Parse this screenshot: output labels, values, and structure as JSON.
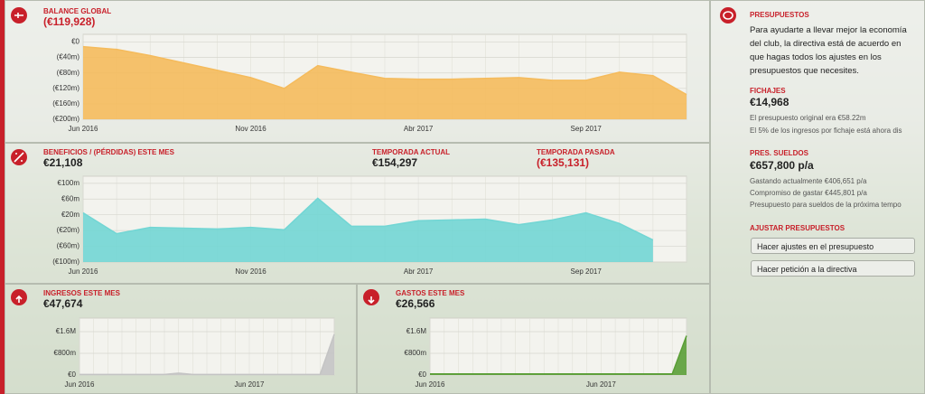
{
  "balance": {
    "label": "BALANCE GLOBAL",
    "value": "(€119,928)",
    "chart": {
      "type": "area",
      "categories": [
        "Jun 2016",
        null,
        null,
        null,
        null,
        "Nov 2016",
        null,
        null,
        null,
        null,
        "Abr 2017",
        null,
        null,
        null,
        null,
        "Sep 2017",
        null,
        null,
        null
      ],
      "values": [
        -12,
        -19,
        -35,
        -54,
        -73,
        -92,
        -120,
        -61,
        -78,
        -94,
        -96,
        -96,
        -94,
        -92,
        -99,
        -99,
        -78,
        -87,
        -136
      ],
      "color": "#f5bb5c",
      "ylim": [
        -200,
        20
      ],
      "yticks": [
        {
          "value": 0,
          "label": "€0"
        },
        {
          "value": -40,
          "label": "(€40m)"
        },
        {
          "value": -80,
          "label": "(€80m)"
        },
        {
          "value": -120,
          "label": "(€120m)"
        },
        {
          "value": -160,
          "label": "(€160m)"
        },
        {
          "value": -200,
          "label": "(€200m)"
        }
      ],
      "grid": true
    }
  },
  "profit": {
    "label": "BENEFICIOS / (PÉRDIDAS) ESTE MES",
    "value": "€21,108",
    "current_label": "TEMPORADA ACTUAL",
    "current_value": "€154,297",
    "last_label": "TEMPORADA PASADA",
    "last_value": "(€135,131)",
    "chart": {
      "type": "area",
      "categories": [
        "Jun 2016",
        null,
        null,
        null,
        null,
        "Nov 2016",
        null,
        null,
        null,
        null,
        "Abr 2017",
        null,
        null,
        null,
        null,
        "Sep 2017",
        null,
        null,
        null
      ],
      "values": [
        25,
        -28,
        -12,
        -14,
        -16,
        -12,
        -18,
        62,
        -9,
        -9,
        5,
        7,
        9,
        -5,
        7,
        25,
        -2,
        -44,
        null
      ],
      "color": "#72d6d4",
      "ylim": [
        -100,
        118
      ],
      "yticks": [
        {
          "value": 100,
          "label": "€100m"
        },
        {
          "value": 60,
          "label": "€60m"
        },
        {
          "value": 20,
          "label": "€20m"
        },
        {
          "value": -20,
          "label": "(€20m)"
        },
        {
          "value": -60,
          "label": "(€60m)"
        },
        {
          "value": -100,
          "label": "(€100m)"
        }
      ],
      "grid": true
    }
  },
  "income": {
    "label": "INGRESOS ESTE MES",
    "value": "€47,674",
    "chart": {
      "type": "area",
      "categories": [
        "Jun 2016",
        null,
        null,
        null,
        null,
        null,
        null,
        null,
        null,
        null,
        null,
        null,
        "Jun 2017",
        null,
        null,
        null,
        null,
        null,
        null
      ],
      "values": [
        20,
        20,
        20,
        20,
        20,
        20,
        20,
        70,
        20,
        20,
        20,
        20,
        20,
        20,
        20,
        20,
        20,
        20,
        1500
      ],
      "color": "#c4c4c4",
      "ylim": [
        0,
        2100
      ],
      "yticks": [
        {
          "value": 1600,
          "label": "€1.6M"
        },
        {
          "value": 800,
          "label": "€800m"
        },
        {
          "value": 0,
          "label": "€0"
        }
      ],
      "grid": true
    }
  },
  "expenses": {
    "label": "GASTOS ESTE MES",
    "value": "€26,566",
    "chart": {
      "type": "area",
      "categories": [
        "Jun 2016",
        null,
        null,
        null,
        null,
        null,
        null,
        null,
        null,
        null,
        null,
        null,
        "Jun 2017",
        null,
        null,
        null,
        null,
        null,
        null
      ],
      "values": [
        40,
        40,
        40,
        40,
        40,
        40,
        40,
        40,
        40,
        40,
        40,
        40,
        40,
        40,
        40,
        40,
        40,
        40,
        1450
      ],
      "color": "#5a9e36",
      "ylim": [
        0,
        2100
      ],
      "yticks": [
        {
          "value": 1600,
          "label": "€1.6M"
        },
        {
          "value": 800,
          "label": "€800m"
        },
        {
          "value": 0,
          "label": "€0"
        }
      ],
      "grid": true
    }
  },
  "budget": {
    "title": "PRESUPUESTOS",
    "intro": "Para ayudarte a llevar mejor la economía del club, la directiva está de acuerdo en que hagas todos los ajustes en los presupuestos que necesites.",
    "transfers_label": "FICHAJES",
    "transfers_value": "€14,968",
    "transfers_notes": [
      "El presupuesto original era €58.22m",
      "El 5% de los ingresos por fichaje está ahora dis"
    ],
    "wages_label": "PRES. SUELDOS",
    "wages_value": "€657,800 p/a",
    "wages_notes": [
      "Gastando actualmente €406,651 p/a",
      "Compromiso de gastar €445,801 p/a",
      "Presupuesto para sueldos de la próxima tempo"
    ],
    "adjust_label": "AJUSTAR PRESUPUESTOS",
    "buttons": [
      "Hacer ajustes en el presupuesto",
      "Hacer petición a la directiva"
    ]
  }
}
